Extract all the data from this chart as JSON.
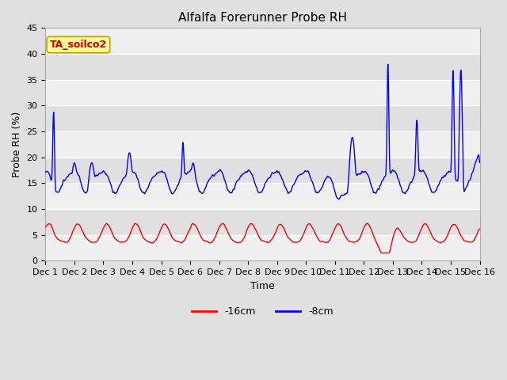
{
  "title": "Alfalfa Forerunner Probe RH",
  "xlabel": "Time",
  "ylabel": "Probe RH (%)",
  "ylim": [
    0,
    45
  ],
  "yticks": [
    0,
    5,
    10,
    15,
    20,
    25,
    30,
    35,
    40,
    45
  ],
  "bg_color": "#e0e0e0",
  "plot_bg_light": "#f0f0f0",
  "plot_bg_dark": "#e0e0e0",
  "grid_color": "#ffffff",
  "annotation_text": "TA_soilco2",
  "annotation_bg": "#ffff99",
  "annotation_border": "#cc9900",
  "annotation_text_color": "#cc0000",
  "line1_color": "#ff0000",
  "line2_color": "#0000ff",
  "line1_label": "-16cm",
  "line2_label": "-8cm",
  "title_fontsize": 11,
  "axis_label_fontsize": 9,
  "tick_fontsize": 8,
  "annot_fontsize": 9
}
